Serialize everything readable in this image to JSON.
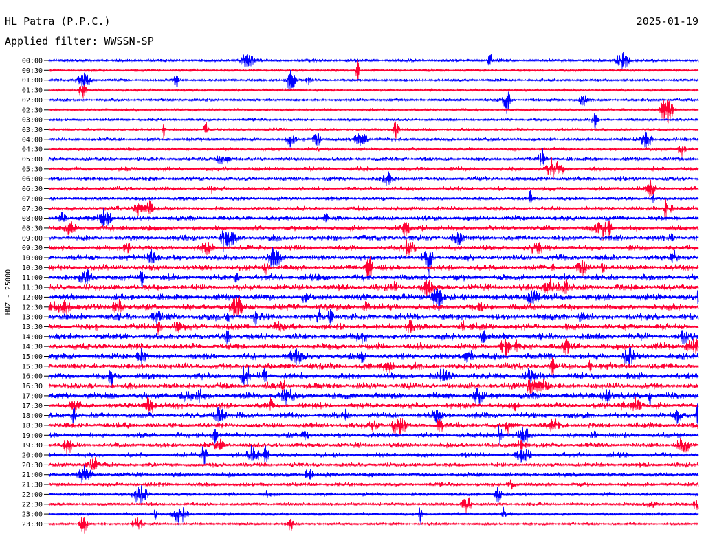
{
  "chart_data": {
    "type": "line",
    "title": "HL Patra (P.P.C.)",
    "date": "2025-01-19",
    "subtitle": "Applied filter: WWSSN-SP",
    "ylabel": "HNZ - 25000",
    "tick_labels": [
      "00:00",
      "00:30",
      "01:00",
      "01:30",
      "02:00",
      "02:30",
      "03:00",
      "03:30",
      "04:00",
      "04:30",
      "05:00",
      "05:30",
      "06:00",
      "06:30",
      "07:00",
      "07:30",
      "08:00",
      "08:30",
      "09:00",
      "09:30",
      "10:00",
      "10:30",
      "11:00",
      "11:30",
      "12:00",
      "12:30",
      "13:00",
      "13:30",
      "14:00",
      "14:30",
      "15:00",
      "15:30",
      "16:00",
      "16:30",
      "17:00",
      "17:30",
      "18:00",
      "18:30",
      "19:00",
      "19:30",
      "20:00",
      "20:30",
      "21:00",
      "21:30",
      "22:00",
      "22:30",
      "23:00",
      "23:30"
    ],
    "trace_colors": [
      "#0000ff",
      "#ff0033"
    ],
    "noise_levels": [
      0.35,
      0.3,
      0.3,
      0.3,
      0.35,
      0.3,
      0.3,
      0.3,
      0.4,
      0.45,
      0.55,
      0.6,
      0.6,
      0.55,
      0.5,
      0.55,
      0.65,
      0.7,
      0.75,
      0.75,
      0.8,
      0.85,
      0.9,
      0.9,
      0.9,
      0.9,
      0.95,
      0.95,
      0.95,
      0.95,
      0.95,
      0.95,
      0.95,
      0.9,
      0.9,
      0.85,
      0.85,
      0.8,
      0.75,
      0.7,
      0.65,
      0.6,
      0.55,
      0.5,
      0.45,
      0.4,
      0.35,
      0.3
    ],
    "grid": false
  }
}
